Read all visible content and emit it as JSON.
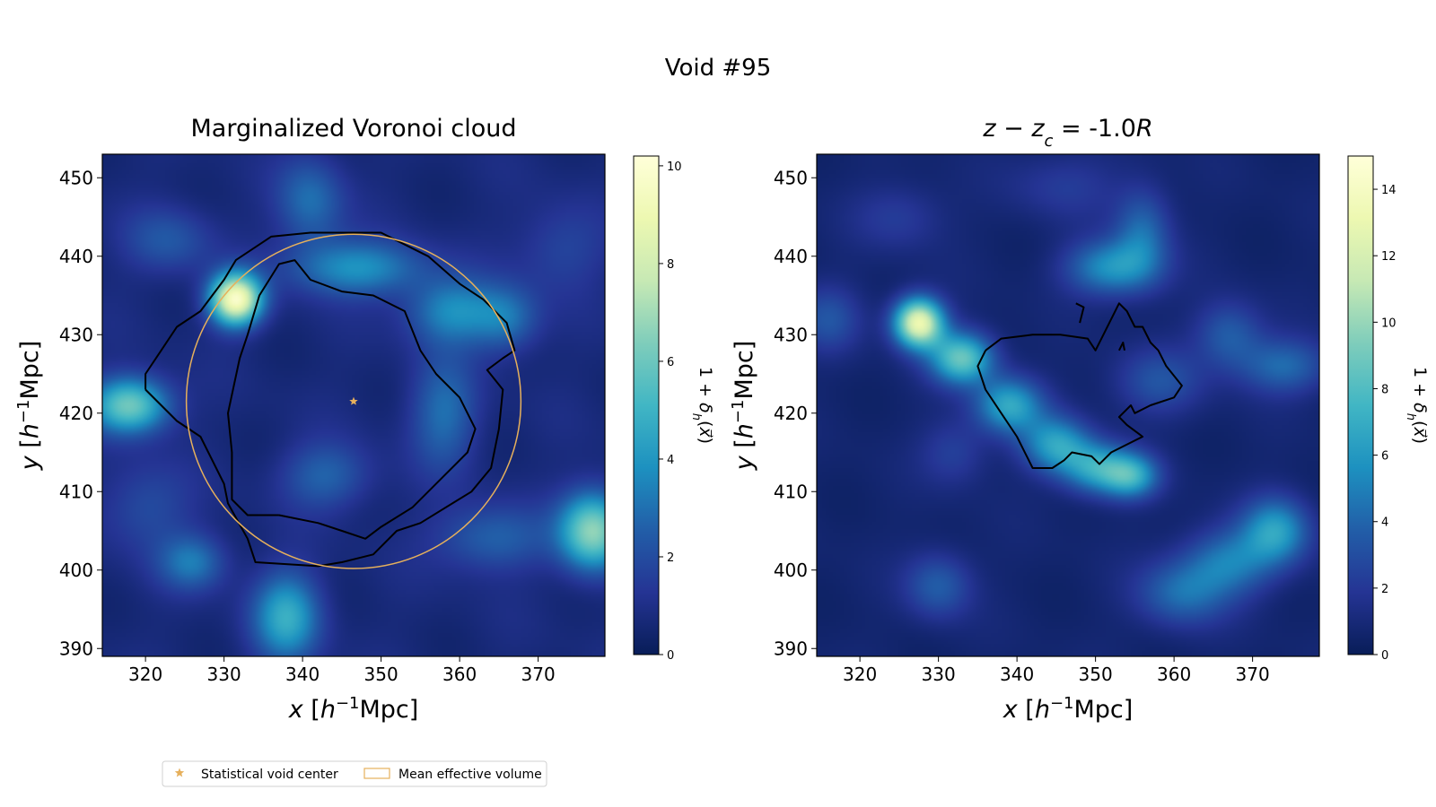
{
  "suptitle": "Void #95",
  "colormap": [
    "#081d58",
    "#253494",
    "#225ea8",
    "#1d91c0",
    "#41b6c4",
    "#7fcdbb",
    "#c7e9b4",
    "#edf8b1",
    "#ffffd9"
  ],
  "colors": {
    "contour": "#000000",
    "center_marker": "#e6b05c",
    "circle": "#e6b05c"
  },
  "legend": {
    "location": "below figure, left",
    "entries": [
      {
        "label": "Statistical void center",
        "marker": "star"
      },
      {
        "label": "Mean effective volume",
        "marker": "open-rectangle"
      }
    ]
  },
  "chart_data": [
    {
      "type": "heatmap",
      "title": "Marginalized Voronoi cloud",
      "xlabel": "x [h⁻¹Mpc]",
      "ylabel": "y [h⁻¹Mpc]",
      "xlim": [
        314.5,
        378.5
      ],
      "ylim": [
        389,
        453
      ],
      "xticks": [
        320,
        330,
        340,
        350,
        360,
        370
      ],
      "yticks": [
        390,
        400,
        410,
        420,
        430,
        440,
        450
      ],
      "colorbar": {
        "label": "1 + δₕ(x⃗)",
        "min": 0,
        "max": 10.2,
        "ticks": [
          0,
          2,
          4,
          6,
          8,
          10
        ]
      },
      "blobs": [
        {
          "x": 331.5,
          "y": 434.5,
          "sx": 2.3,
          "sy": 2.3,
          "amp": 9.0
        },
        {
          "x": 318,
          "y": 421,
          "sx": 3.5,
          "sy": 2.5,
          "amp": 5.5
        },
        {
          "x": 377,
          "y": 405,
          "sx": 3,
          "sy": 3.5,
          "amp": 6.0
        },
        {
          "x": 347,
          "y": 438.5,
          "sx": 6,
          "sy": 2.5,
          "amp": 3.2
        },
        {
          "x": 359,
          "y": 433,
          "sx": 4,
          "sy": 3,
          "amp": 3.0
        },
        {
          "x": 338,
          "y": 394,
          "sx": 3,
          "sy": 4,
          "amp": 4.0
        },
        {
          "x": 326,
          "y": 401,
          "sx": 3,
          "sy": 2.5,
          "amp": 2.5
        },
        {
          "x": 343,
          "y": 412,
          "sx": 4,
          "sy": 3,
          "amp": 2.0
        },
        {
          "x": 364,
          "y": 404,
          "sx": 5,
          "sy": 3,
          "amp": 2.0
        },
        {
          "x": 358,
          "y": 420,
          "sx": 3,
          "sy": 5,
          "amp": 2.3
        },
        {
          "x": 341,
          "y": 447,
          "sx": 3,
          "sy": 4,
          "amp": 2.3
        },
        {
          "x": 366,
          "y": 432,
          "sx": 3,
          "sy": 3,
          "amp": 2.3
        },
        {
          "x": 323,
          "y": 442,
          "sx": 4,
          "sy": 3,
          "amp": 1.6
        },
        {
          "x": 373,
          "y": 441,
          "sx": 4,
          "sy": 4,
          "amp": 1.2
        },
        {
          "x": 320,
          "y": 408,
          "sx": 4,
          "sy": 4,
          "amp": 1.4
        }
      ],
      "contours": [
        [
          [
            320,
            423
          ],
          [
            324,
            419
          ],
          [
            327,
            417
          ],
          [
            330,
            411
          ],
          [
            330.5,
            408.5
          ],
          [
            333,
            404
          ],
          [
            334,
            401
          ],
          [
            342,
            400.5
          ],
          [
            345,
            401
          ],
          [
            349,
            402
          ],
          [
            352,
            405
          ],
          [
            355,
            406
          ],
          [
            361.5,
            410
          ],
          [
            364,
            413
          ],
          [
            365,
            418
          ],
          [
            365.5,
            423
          ],
          [
            363.5,
            425.5
          ],
          [
            365.5,
            427
          ],
          [
            367,
            428
          ],
          [
            366,
            431.5
          ],
          [
            363,
            434.5
          ],
          [
            360,
            436.5
          ],
          [
            356,
            440
          ],
          [
            350,
            443
          ],
          [
            346,
            443
          ],
          [
            341,
            443
          ],
          [
            336,
            442.5
          ],
          [
            331.5,
            439.5
          ],
          [
            330,
            437
          ],
          [
            327,
            433
          ],
          [
            324,
            431
          ],
          [
            322,
            428
          ],
          [
            320,
            425
          ],
          [
            320,
            423
          ]
        ],
        [
          [
            337,
            407
          ],
          [
            342,
            406
          ],
          [
            345,
            405
          ],
          [
            348,
            404
          ],
          [
            350,
            405.5
          ],
          [
            354,
            408
          ],
          [
            358,
            412
          ],
          [
            361,
            415
          ],
          [
            362,
            418
          ],
          [
            360,
            422
          ],
          [
            357,
            425
          ],
          [
            355,
            428
          ],
          [
            353,
            433
          ],
          [
            349,
            435
          ],
          [
            345,
            435.5
          ],
          [
            341,
            437
          ],
          [
            339,
            439.5
          ],
          [
            337,
            439
          ],
          [
            334.5,
            435
          ],
          [
            333,
            430
          ],
          [
            332,
            427
          ],
          [
            330.5,
            420
          ],
          [
            331,
            415
          ],
          [
            331,
            409
          ],
          [
            333,
            407
          ],
          [
            337,
            407
          ]
        ]
      ],
      "circle": {
        "cx": 346.5,
        "cy": 421.5,
        "r": 21.3
      },
      "center": {
        "x": 346.5,
        "y": 421.5
      }
    },
    {
      "type": "heatmap",
      "title": "z − z_c = -1.0R",
      "xlabel": "x [h⁻¹Mpc]",
      "ylabel": "y [h⁻¹Mpc]",
      "xlim": [
        314.5,
        378.5
      ],
      "ylim": [
        389,
        453
      ],
      "xticks": [
        320,
        330,
        340,
        350,
        360,
        370
      ],
      "yticks": [
        390,
        400,
        410,
        420,
        430,
        440,
        450
      ],
      "colorbar": {
        "label": "1 + δₕ(x⃗)",
        "min": 0,
        "max": 15,
        "ticks": [
          0,
          2,
          4,
          6,
          8,
          10,
          12,
          14
        ]
      },
      "blobs": [
        {
          "x": 327.5,
          "y": 431.5,
          "sx": 2.2,
          "sy": 2.2,
          "amp": 12.5
        },
        {
          "x": 333,
          "y": 427,
          "sx": 2.8,
          "sy": 2.3,
          "amp": 8.0
        },
        {
          "x": 339,
          "y": 421,
          "sx": 3,
          "sy": 2.5,
          "amp": 6.0
        },
        {
          "x": 345,
          "y": 416,
          "sx": 3,
          "sy": 2.5,
          "amp": 5.5
        },
        {
          "x": 350,
          "y": 413,
          "sx": 3,
          "sy": 2.3,
          "amp": 5.5
        },
        {
          "x": 354.5,
          "y": 412,
          "sx": 2.5,
          "sy": 2,
          "amp": 6.0
        },
        {
          "x": 352,
          "y": 438.5,
          "sx": 4,
          "sy": 2.5,
          "amp": 5.0
        },
        {
          "x": 356,
          "y": 443,
          "sx": 2.5,
          "sy": 4,
          "amp": 3.5
        },
        {
          "x": 358,
          "y": 424,
          "sx": 4,
          "sy": 3,
          "amp": 2.5
        },
        {
          "x": 367,
          "y": 430,
          "sx": 3,
          "sy": 3,
          "amp": 3.0
        },
        {
          "x": 374,
          "y": 426,
          "sx": 4,
          "sy": 2.5,
          "amp": 3.5
        },
        {
          "x": 373,
          "y": 405,
          "sx": 3,
          "sy": 3,
          "amp": 5.5
        },
        {
          "x": 367,
          "y": 401,
          "sx": 4,
          "sy": 3,
          "amp": 4.0
        },
        {
          "x": 361,
          "y": 397,
          "sx": 4,
          "sy": 3,
          "amp": 3.5
        },
        {
          "x": 330,
          "y": 398,
          "sx": 3,
          "sy": 3,
          "amp": 3.0
        },
        {
          "x": 316,
          "y": 432,
          "sx": 3,
          "sy": 3,
          "amp": 2.5
        },
        {
          "x": 332,
          "y": 415,
          "sx": 3,
          "sy": 3,
          "amp": 1.8
        },
        {
          "x": 325,
          "y": 445,
          "sx": 4,
          "sy": 3,
          "amp": 1.6
        },
        {
          "x": 346,
          "y": 449,
          "sx": 5,
          "sy": 3,
          "amp": 1.5
        }
      ],
      "contours": [
        [
          [
            336,
            428
          ],
          [
            338,
            429.5
          ],
          [
            342,
            430
          ],
          [
            345.5,
            430
          ],
          [
            349,
            429.5
          ],
          [
            350,
            428
          ],
          [
            351,
            430
          ],
          [
            353,
            434
          ],
          [
            354,
            433
          ],
          [
            355,
            431
          ],
          [
            356,
            431
          ],
          [
            357,
            429
          ],
          [
            358,
            428
          ],
          [
            359,
            426
          ],
          [
            361,
            423.5
          ],
          [
            360,
            422
          ],
          [
            357,
            421
          ],
          [
            355,
            420
          ],
          [
            354.5,
            421
          ],
          [
            353,
            419.5
          ],
          [
            354,
            418.5
          ],
          [
            356,
            417
          ],
          [
            352,
            415
          ],
          [
            350.5,
            413.5
          ],
          [
            349.5,
            414.5
          ],
          [
            347,
            415
          ],
          [
            346,
            414
          ],
          [
            344.5,
            413
          ],
          [
            342,
            413
          ],
          [
            340,
            417
          ],
          [
            338,
            420
          ],
          [
            336,
            423
          ],
          [
            335,
            426
          ],
          [
            336,
            428
          ]
        ],
        [
          [
            348,
            431.5
          ],
          [
            348.5,
            433.5
          ],
          [
            347.5,
            434
          ]
        ],
        [
          [
            353,
            428
          ],
          [
            353.5,
            429
          ],
          [
            353.7,
            428
          ]
        ]
      ]
    }
  ]
}
